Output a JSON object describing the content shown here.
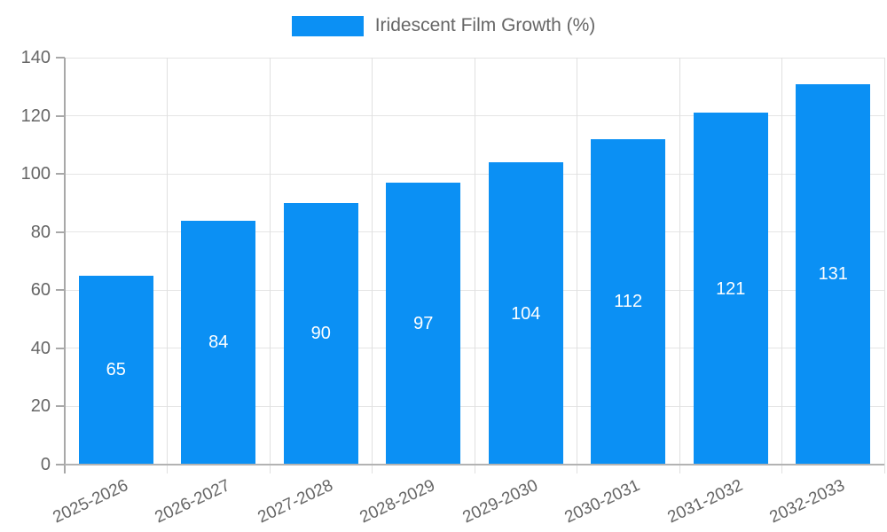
{
  "legend": {
    "label": "Iridescent Film Growth (%)"
  },
  "chart_data": {
    "type": "bar",
    "title": "Iridescent Film Growth (%)",
    "categories": [
      "2025-2026",
      "2026-2027",
      "2027-2028",
      "2028-2029",
      "2029-2030",
      "2030-2031",
      "2031-2032",
      "2032-2033"
    ],
    "values": [
      65,
      84,
      90,
      97,
      104,
      112,
      121,
      131
    ],
    "yticks": [
      0,
      20,
      40,
      60,
      80,
      100,
      120,
      140
    ],
    "ylim": [
      0,
      140
    ],
    "xlabel": "",
    "ylabel": "",
    "grid": true,
    "legend_position": "top-center",
    "bar_color": "#0b90f4",
    "value_label_color": "#ffffff",
    "axis_text_color": "#666666",
    "grid_color": "#e5e5e5",
    "axis_line_color": "#a8a8a8"
  }
}
